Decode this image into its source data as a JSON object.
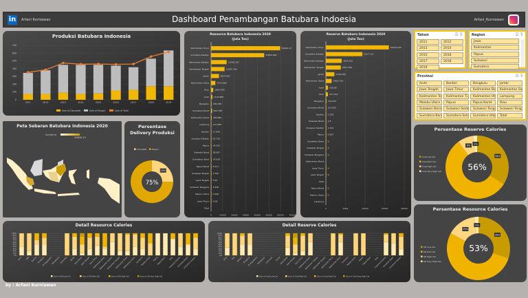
{
  "header": {
    "title": "Dashboard Penambangan Batubara Indoesia",
    "left_name": "Arfani Kurniawan",
    "right_name": "Arfani_Kurniawan",
    "left_icon": "linkedin-icon",
    "right_icon": "instagram-icon"
  },
  "footer": "by : Arfani Kurniawan",
  "colors": {
    "gold": "#f2b705",
    "gray": "#bdbdbd",
    "orange": "#ed7d31",
    "dark_gold": "#c89b00",
    "light": "#ffd680",
    "cream": "#ffeab8"
  },
  "slicers": {
    "tahun": {
      "title": "Tahun",
      "items": [
        "2011",
        "2012",
        "2013",
        "2014",
        "2015",
        "2016",
        "2017",
        "2018",
        "2019"
      ]
    },
    "region": {
      "title": "Region",
      "items": [
        "Jawa",
        "Kalimantan",
        "Papua",
        "Sulawesi",
        "Sumatera"
      ]
    },
    "provinsi": {
      "title": "Provinsi",
      "items": [
        "Aceh",
        "Banten",
        "Bengkulu",
        "Jambi",
        "Jawa Tengah",
        "Jawa Timur",
        "Kalimantan Ba...",
        "Kalimantan Sel...",
        "Kalimantan Te...",
        "Kalimantan Ti...",
        "Kalimantan Ut...",
        "Lampung",
        "Maluku Utara",
        "Papua",
        "Papua Barat",
        "Riau",
        "Sulawesi Barat",
        "Sulawesi Selatan",
        "Sulawesi Tengah",
        "Sulawesi Teng...",
        "Sumatera Barat",
        "Sumatera Sela...",
        "Sumatera Utara",
        "Total"
      ]
    }
  },
  "chart_data": [
    {
      "id": "produksi",
      "type": "bar",
      "title": "Produksi Batubara Indonesia",
      "categories": [
        "2011",
        "2012",
        "2013",
        "2014",
        "2015",
        "2016",
        "2017",
        "2018",
        "2019"
      ],
      "series": [
        {
          "name": "Sum of Domestik",
          "values": [
            75,
            75,
            92,
            75,
            82,
            120,
            128,
            175,
            175
          ]
        },
        {
          "name": "Sum of Ekspor",
          "values": [
            272,
            305,
            358,
            375,
            368,
            320,
            292,
            355,
            460
          ]
        },
        {
          "name": "Sum of Total",
          "type": "line",
          "values": [
            353,
            386,
            474,
            458,
            461,
            456,
            461,
            557,
            616
          ]
        }
      ],
      "ylim": [
        0,
        700
      ],
      "yticks": [
        0,
        100,
        200,
        300,
        400,
        500,
        600,
        700
      ],
      "legend": "bottom"
    },
    {
      "id": "resource",
      "type": "bar",
      "orientation": "horizontal",
      "title": "Resource Batubara Indonesia 2020",
      "subtitle": "(Juta Ton)",
      "categories": [
        "Kalimantan Timur",
        "Sumatera Selatan",
        "Kalimantan Selatan",
        "Kalimantan Tengah",
        "Jambi",
        "Kalimantan Utara",
        "Riau",
        "Aceh",
        "Bengkulu",
        "Sumatera Barat",
        "Kalimantan Barat",
        "Lampung",
        "Banten",
        "Sulawesi Selatan",
        "Papua",
        "Sulawesi Barat",
        "Sumatera Utara",
        "Papua Barat",
        "Sulawesi Tengah",
        "Jawa Tengah",
        "Sulawesi Tenggara",
        "Maluku Utara",
        "Jawa Timur",
        "Total"
      ],
      "values": [
        59606.15,
        45852.662,
        13438.167,
        11650.766,
        6834.667,
        3703.668,
        1893.678,
        1120.889,
        436.386,
        895.788,
        485.889,
        111.889,
        17.649,
        62.736,
        34.559,
        28.687,
        14.618,
        8.317,
        2.392,
        0.82,
        0.636,
        0.636,
        0.08,
        null
      ],
      "labels": [
        "59606.15",
        "45852.662",
        "13438.167",
        "11650.766",
        "6834.667",
        "3703.668",
        "1893.678",
        "1120.889",
        "436.386",
        "895.788",
        "485.889",
        "111.889",
        "17.649",
        "62.736",
        "34.559",
        "28.687",
        "14.618",
        "8.317",
        "2.392",
        "0.82",
        "0.636",
        "0.636",
        "0.08",
        ""
      ],
      "xlim": [
        0,
        70000
      ],
      "xticks": [
        "0",
        "10000",
        "20000",
        "30000",
        "40000",
        "50000",
        "60000",
        "70000"
      ]
    },
    {
      "id": "reserve",
      "type": "bar",
      "orientation": "horizontal",
      "title": "Reserve Batubara Indonesia 2020",
      "subtitle": "(Juta Ton)",
      "categories": [
        "Kalimantan Timur",
        "Sumatera Selatan",
        "Kalimantan Selatan",
        "Kalimantan Tengah",
        "Jambi",
        "Kalimantan Utara",
        "Aceh",
        "Riau",
        "Bengkulu",
        "Sumatera Barat",
        "Banten",
        "Sulawesi Barat",
        "Sulawesi Selatan",
        "Papua",
        "Sumatera Utara",
        "Sulawesi Tengah",
        "Sulawesi Tenggara",
        "Kalimantan Barat",
        "Jawa Timur",
        "Jawa Tengah",
        "Total",
        "Papua Barat",
        "Maluku Utara",
        "Lampung"
      ],
      "values": [
        16075.645,
        9327.112,
        4030.302,
        3811.369,
        2156.948,
        1463.739,
        538.68,
        517.914,
        156.397,
        101.895,
        7.229,
        1.8,
        1.516,
        0.567,
        0,
        0,
        0,
        null,
        0,
        0,
        null,
        0,
        0,
        null
      ],
      "labels": [
        "16075.645",
        "9327.112",
        "4030.302",
        "3811.369",
        "2156.948",
        "1463.739",
        "538.68",
        "517.914",
        "156.397",
        "101.895",
        "7.229",
        "1.8",
        "1.516",
        "0.567",
        "0",
        "0",
        "0",
        "",
        "0",
        "0",
        "",
        "0",
        "0",
        ""
      ],
      "xlim": [
        0,
        20000
      ],
      "xticks": [
        "0",
        "5000",
        "10000",
        "15000",
        "20000"
      ]
    },
    {
      "id": "delivery",
      "type": "pie",
      "title": "Persentase Delivery Produksi",
      "labels": [
        "Domestik",
        "Ekspor"
      ],
      "values": [
        25,
        75
      ],
      "slice_labels": [
        "25%",
        ""
      ],
      "center": "75%"
    },
    {
      "id": "reserve_cal",
      "type": "pie",
      "title": "Persentase Reserve Calories",
      "labels": [
        "Coal Low Cal",
        "Coal Med Cal",
        "Coal High Cal",
        "Coal Very High Cal"
      ],
      "values": [
        34,
        56,
        8,
        2
      ],
      "slice_labels": [
        "34%",
        "",
        "8%",
        "2%"
      ],
      "center": "56%"
    },
    {
      "id": "resource_cal",
      "type": "pie",
      "title": "Persentase Resource Calories",
      "labels": [
        "SD Low Cal",
        "SD Med Cal",
        "SD High Cal",
        "SD Very High Cal"
      ],
      "values": [
        30,
        53,
        15,
        2
      ],
      "slice_labels": [
        "30%",
        "",
        "15%",
        "2%"
      ],
      "center": "53%"
    },
    {
      "id": "detail_resource",
      "type": "bar",
      "stacked": "100%",
      "title": "Detail Resource Calories",
      "yticks": [
        "0%",
        "10%",
        "20%",
        "30%",
        "40%",
        "50%",
        "60%",
        "70%",
        "80%",
        "90%",
        "100%"
      ],
      "categories": [
        "Aceh",
        "Bali",
        "Banten",
        "Bengkulu",
        "DI Yogyakarta",
        "DKI Jakarta",
        "Gorontalo",
        "Jambi",
        "Jawa Barat",
        "Jawa Tengah",
        "Jawa Timur",
        "Kalimantan Barat",
        "Kalimantan Selatan",
        "Kalimantan Tengah",
        "Kalimantan Timur",
        "Kalimantan Utara",
        "Lampung",
        "Maluku Utara",
        "Papua",
        "Papua Barat",
        "Riau",
        "Sulawesi Selatan",
        "Sumatera Barat",
        "Sumatera Selatan"
      ],
      "series": [
        {
          "name": "Sum of SD Low Cal",
          "values": [
            40,
            20,
            50,
            50,
            0,
            0,
            0,
            30,
            10,
            30,
            45,
            30,
            60,
            20,
            20,
            40,
            30,
            5,
            100,
            100,
            75,
            40,
            50,
            30
          ]
        },
        {
          "name": "Sum of SD Med Cal",
          "values": [
            60,
            80,
            20,
            30,
            0,
            0,
            100,
            55,
            40,
            50,
            40,
            10,
            40,
            80,
            75,
            55,
            50,
            50,
            0,
            0,
            0,
            60,
            0,
            50
          ]
        },
        {
          "name": "Sum of SD High Cal",
          "values": [
            0,
            0,
            30,
            20,
            0,
            0,
            0,
            15,
            35,
            20,
            15,
            60,
            0,
            0,
            5,
            5,
            20,
            45,
            0,
            0,
            25,
            0,
            50,
            20
          ]
        },
        {
          "name": "Sum of SD Very High Cal",
          "values": [
            0,
            0,
            0,
            0,
            0,
            0,
            0,
            0,
            15,
            0,
            0,
            0,
            0,
            0,
            0,
            0,
            0,
            0,
            0,
            0,
            0,
            0,
            0,
            0
          ]
        }
      ],
      "legend": "bottom"
    },
    {
      "id": "detail_reserve",
      "type": "bar",
      "stacked": "100%",
      "title": "Detail Reserve Calories",
      "yticks": [
        "0%",
        "10%",
        "20%",
        "30%",
        "40%",
        "50%",
        "60%",
        "70%",
        "80%",
        "90%",
        "100%"
      ],
      "categories": [
        "Aceh",
        "Bali",
        "Banten",
        "Bengkulu",
        "DI Yogyakarta",
        "DKI Jakarta",
        "Gorontalo",
        "Jambi",
        "Jawa Barat",
        "Jawa Tengah",
        "Jawa Timur",
        "Kalimantan Barat",
        "Kalimantan Selatan",
        "Kalimantan Tengah",
        "Kalimantan Timur",
        "Kalimantan Utara",
        "Lampung",
        "Maluku Utara",
        "Papua",
        "Papua Barat",
        "Riau",
        "Sulawesi Selatan",
        "Sumatera Barat",
        "Sumatera Selatan"
      ],
      "series": [
        {
          "name": "Sum of Coal Low Cal",
          "values": [
            35,
            0,
            50,
            50,
            0,
            0,
            0,
            0,
            35,
            10,
            20,
            60,
            0,
            0,
            0,
            60,
            0,
            0,
            0,
            0,
            0,
            60,
            55,
            30
          ]
        },
        {
          "name": "Sum of Coal Med Cal",
          "values": [
            65,
            100,
            40,
            50,
            0,
            0,
            0,
            0,
            55,
            40,
            70,
            40,
            0,
            0,
            100,
            35,
            0,
            100,
            100,
            0,
            0,
            35,
            45,
            55
          ]
        },
        {
          "name": "Sum of Coal High Cal",
          "values": [
            0,
            0,
            10,
            0,
            0,
            0,
            0,
            0,
            10,
            30,
            10,
            0,
            0,
            0,
            0,
            5,
            0,
            0,
            0,
            0,
            0,
            5,
            0,
            15
          ]
        },
        {
          "name": "Sum of Coal Very High Cal",
          "values": [
            0,
            0,
            0,
            0,
            0,
            0,
            0,
            0,
            0,
            20,
            0,
            0,
            0,
            0,
            0,
            0,
            0,
            0,
            0,
            0,
            0,
            0,
            0,
            0
          ]
        }
      ],
      "legend": "bottom"
    },
    {
      "id": "map",
      "type": "map",
      "title": "Peta Sebaran Batubara Indonesia 2020",
      "legend_min": "",
      "legend_label": "Sum(Jml)",
      "legend_max": "59606.15"
    }
  ]
}
